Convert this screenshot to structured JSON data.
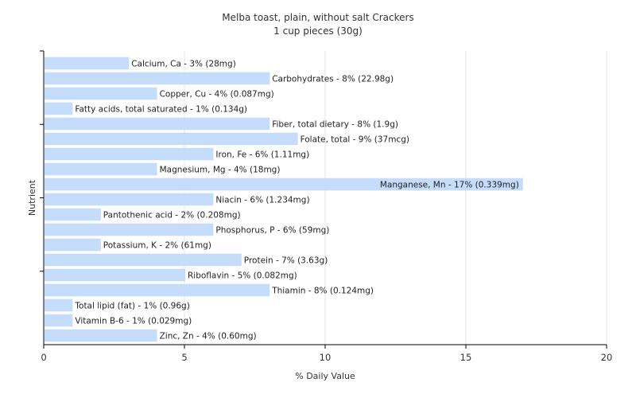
{
  "chart_data": {
    "type": "bar",
    "orientation": "horizontal",
    "title": "Melba toast, plain, without salt Crackers",
    "subtitle": "1 cup pieces (30g)",
    "xlabel": "% Daily Value",
    "ylabel": "Nutrient",
    "xlim": [
      0,
      20
    ],
    "xticks": [
      0,
      5,
      10,
      15,
      20
    ],
    "grid": true,
    "bar_color": "#c5dcfa",
    "categories": [
      "Calcium, Ca",
      "Carbohydrates",
      "Copper, Cu",
      "Fatty acids, total saturated",
      "Fiber, total dietary",
      "Folate, total",
      "Iron, Fe",
      "Magnesium, Mg",
      "Manganese, Mn",
      "Niacin",
      "Pantothenic acid",
      "Phosphorus, P",
      "Potassium, K",
      "Protein",
      "Riboflavin",
      "Thiamin",
      "Total lipid (fat)",
      "Vitamin B-6",
      "Zinc, Zn"
    ],
    "values": [
      3,
      8,
      4,
      1,
      8,
      9,
      6,
      4,
      17,
      6,
      2,
      6,
      2,
      7,
      5,
      8,
      1,
      1,
      4
    ],
    "labels": [
      "Calcium, Ca - 3% (28mg)",
      "Carbohydrates - 8% (22.98g)",
      "Copper, Cu - 4% (0.087mg)",
      "Fatty acids, total saturated - 1% (0.134g)",
      "Fiber, total dietary - 8% (1.9g)",
      "Folate, total - 9% (37mcg)",
      "Iron, Fe - 6% (1.11mg)",
      "Magnesium, Mg - 4% (18mg)",
      "Manganese, Mn - 17% (0.339mg)",
      "Niacin - 6% (1.234mg)",
      "Pantothenic acid - 2% (0.208mg)",
      "Phosphorus, P - 6% (59mg)",
      "Potassium, K - 2% (61mg)",
      "Protein - 7% (3.63g)",
      "Riboflavin - 5% (0.082mg)",
      "Thiamin - 8% (0.124mg)",
      "Total lipid (fat) - 1% (0.96g)",
      "Vitamin B-6 - 1% (0.029mg)",
      "Zinc, Zn - 4% (0.60mg)"
    ]
  }
}
